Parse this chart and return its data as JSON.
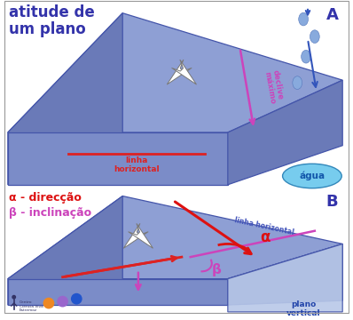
{
  "bg_color": "#ffffff",
  "title_text": "atitude de\num plano",
  "title_color": "#3333aa",
  "title_fontsize": 12,
  "label_A": "A",
  "label_B": "B",
  "label_color": "#3333aa",
  "slab_top_color": "#8e9fd4",
  "slab_left_color": "#6a7ab8",
  "slab_front_color": "#7b8cc8",
  "slab_edge_color": "#4455aa",
  "linha_horizontal_color": "#dd2222",
  "declive_maximo_color": "#cc44bb",
  "agua_color": "#77ccee",
  "alpha_color": "#dd1111",
  "beta_color": "#cc44bb",
  "param_color_alpha": "#dd1111",
  "param_color_beta": "#cc44bb",
  "plano_vertical_color": "#b8c8e8",
  "north_fill": "#ffffff",
  "north_stroke": "#888888",
  "drop_color": "#88aadd",
  "arrow_blue_color": "#3355bb",
  "agua_text_color": "#1155aa",
  "border_color": "#999999",
  "logo_orange": "#ee8822",
  "logo_purple": "#9966cc",
  "logo_blue": "#2255cc"
}
